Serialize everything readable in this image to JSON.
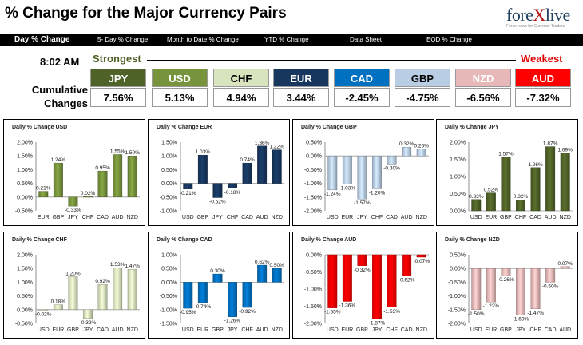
{
  "header": {
    "title": "% Change for the Major Currency Pairs"
  },
  "logo": {
    "text_a": "fore",
    "text_x": "X",
    "text_b": "live",
    "tagline": "Forex news for Currency Traders"
  },
  "tabs": [
    {
      "label": "Day % Change",
      "active": true
    },
    {
      "label": "5- Day % Change"
    },
    {
      "label": "Month to Date % Change"
    },
    {
      "label": "YTD % Change"
    },
    {
      "label": "Data Sheet"
    },
    {
      "label": "EOD % Change"
    }
  ],
  "summary": {
    "time": "8:02 AM",
    "strongest_label": "Strongest",
    "weakest_label": "Weakest",
    "cumulative_label_1": "Cumulative",
    "cumulative_label_2": "Changes",
    "currencies": [
      {
        "code": "JPY",
        "value": "7.56%",
        "color": "#4f6228",
        "text_color": "#ffffff"
      },
      {
        "code": "USD",
        "value": "5.13%",
        "color": "#77933c",
        "text_color": "#ffffff"
      },
      {
        "code": "CHF",
        "value": "4.94%",
        "color": "#d7e4bd",
        "text_color": "#000000"
      },
      {
        "code": "EUR",
        "value": "3.44%",
        "color": "#17375e",
        "text_color": "#ffffff"
      },
      {
        "code": "CAD",
        "value": "-2.45%",
        "color": "#0070c0",
        "text_color": "#ffffff"
      },
      {
        "code": "GBP",
        "value": "-4.75%",
        "color": "#b9cde5",
        "text_color": "#000000"
      },
      {
        "code": "NZD",
        "value": "-6.56%",
        "color": "#e6b9b8",
        "text_color": "#ffffff"
      },
      {
        "code": "AUD",
        "value": "-7.32%",
        "color": "#ff0000",
        "text_color": "#ffffff"
      }
    ]
  },
  "chart_data": [
    {
      "type": "bar",
      "title": "Daily % Change USD",
      "categories": [
        "EUR",
        "GBP",
        "JPY",
        "CHF",
        "CAD",
        "AUD",
        "NZD"
      ],
      "values": [
        0.21,
        1.24,
        -0.33,
        0.02,
        0.95,
        1.55,
        1.5
      ],
      "labels": [
        "0.21%",
        "1.24%",
        "-0.33%",
        "0.02%",
        "0.95%",
        "1.55%",
        "1.50%"
      ],
      "ylim": [
        -0.5,
        2.0
      ],
      "ticks": [
        "2.00%",
        "1.50%",
        "1.00%",
        "0.50%",
        "0.00%",
        "-0.50%"
      ],
      "color": "#77933c"
    },
    {
      "type": "bar",
      "title": "Daily % Change EUR",
      "categories": [
        "USD",
        "GBP",
        "JPY",
        "CHF",
        "CAD",
        "AUD",
        "NZD"
      ],
      "values": [
        -0.21,
        1.03,
        -0.52,
        -0.18,
        0.74,
        1.36,
        1.22
      ],
      "labels": [
        "-0.21%",
        "1.03%",
        "-0.52%",
        "-0.18%",
        "0.74%",
        "1.36%",
        "1.22%"
      ],
      "ylim": [
        -1.0,
        1.5
      ],
      "ticks": [
        "1.50%",
        "1.00%",
        "0.50%",
        "0.00%",
        "-0.50%",
        "-1.00%"
      ],
      "color": "#17375e"
    },
    {
      "type": "bar",
      "title": "Daily % Change GBP",
      "categories": [
        "USD",
        "EUR",
        "JPY",
        "CHF",
        "CAD",
        "AUD",
        "NZD"
      ],
      "values": [
        -1.24,
        -1.03,
        -1.57,
        -1.2,
        -0.3,
        0.32,
        0.26
      ],
      "labels": [
        "-1.24%",
        "-1.03%",
        "-1.57%",
        "-1.20%",
        "-0.30%",
        "0.32%",
        "0.26%"
      ],
      "ylim": [
        -2.0,
        0.5
      ],
      "ticks": [
        "0.50%",
        "0.00%",
        "-0.50%",
        "-1.00%",
        "-1.50%",
        "-2.00%"
      ],
      "color": "#b9cde5"
    },
    {
      "type": "bar",
      "title": "Daily % Change JPY",
      "categories": [
        "USD",
        "EUR",
        "GBP",
        "CHF",
        "CAD",
        "AUD",
        "NZD"
      ],
      "values": [
        0.33,
        0.52,
        1.57,
        0.32,
        1.26,
        1.87,
        1.69
      ],
      "labels": [
        "0.33%",
        "0.52%",
        "1.57%",
        "0.32%",
        "1.26%",
        "1.87%",
        "1.69%"
      ],
      "ylim": [
        0.0,
        2.0
      ],
      "ticks": [
        "2.00%",
        "1.50%",
        "1.00%",
        "0.50%",
        "0.00%"
      ],
      "color": "#4f6228"
    },
    {
      "type": "bar",
      "title": "Daily % Change CHF",
      "categories": [
        "USD",
        "EUR",
        "GBP",
        "JPY",
        "CAD",
        "AUD",
        "NZD"
      ],
      "values": [
        -0.02,
        0.18,
        1.2,
        -0.32,
        0.92,
        1.53,
        1.47
      ],
      "labels": [
        "-0.02%",
        "0.18%",
        "1.20%",
        "-0.32%",
        "0.92%",
        "1.53%",
        "1.47%"
      ],
      "ylim": [
        -0.5,
        2.0
      ],
      "ticks": [
        "2.00%",
        "1.50%",
        "1.00%",
        "0.50%",
        "0.00%",
        "-0.50%"
      ],
      "color": "#d7e4bd"
    },
    {
      "type": "bar",
      "title": "Daily % Change CAD",
      "categories": [
        "USD",
        "EUR",
        "GBP",
        "JPY",
        "CHF",
        "AUD",
        "NZD"
      ],
      "values": [
        -0.95,
        -0.74,
        0.3,
        -1.26,
        -0.92,
        0.62,
        0.5
      ],
      "labels": [
        "-0.95%",
        "-0.74%",
        "0.30%",
        "-1.26%",
        "-0.92%",
        "0.62%",
        "0.50%"
      ],
      "ylim": [
        -1.5,
        1.0
      ],
      "ticks": [
        "1.00%",
        "0.50%",
        "0.00%",
        "-0.50%",
        "-1.00%",
        "-1.50%"
      ],
      "color": "#0070c0"
    },
    {
      "type": "bar",
      "title": "Daily % Change AUD",
      "categories": [
        "USD",
        "EUR",
        "GBP",
        "JPY",
        "CHF",
        "CAD",
        "NZD"
      ],
      "values": [
        -1.55,
        -1.36,
        -0.32,
        -1.87,
        -1.53,
        -0.62,
        -0.07
      ],
      "labels": [
        "-1.55%",
        "-1.36%",
        "-0.32%",
        "-1.87%",
        "-1.53%",
        "-0.62%",
        "-0.07%"
      ],
      "ylim": [
        -2.0,
        0.0
      ],
      "ticks": [
        "0.00%",
        "-0.50%",
        "-1.00%",
        "-1.50%",
        "-2.00%"
      ],
      "color": "#ff0000"
    },
    {
      "type": "bar",
      "title": "Daily % Change NZD",
      "categories": [
        "USD",
        "EUR",
        "GBP",
        "JPY",
        "CHF",
        "CAD",
        "AUD"
      ],
      "values": [
        -1.5,
        -1.22,
        -0.26,
        -1.69,
        -1.47,
        -0.5,
        0.07
      ],
      "labels": [
        "-1.50%",
        "-1.22%",
        "-0.26%",
        "-1.69%",
        "-1.47%",
        "-0.50%",
        "0.07%"
      ],
      "ylim": [
        -2.0,
        0.5
      ],
      "ticks": [
        "0.50%",
        "0.00%",
        "-0.50%",
        "-1.00%",
        "-1.50%",
        "-2.00%"
      ],
      "color": "#e6b9b8"
    }
  ]
}
